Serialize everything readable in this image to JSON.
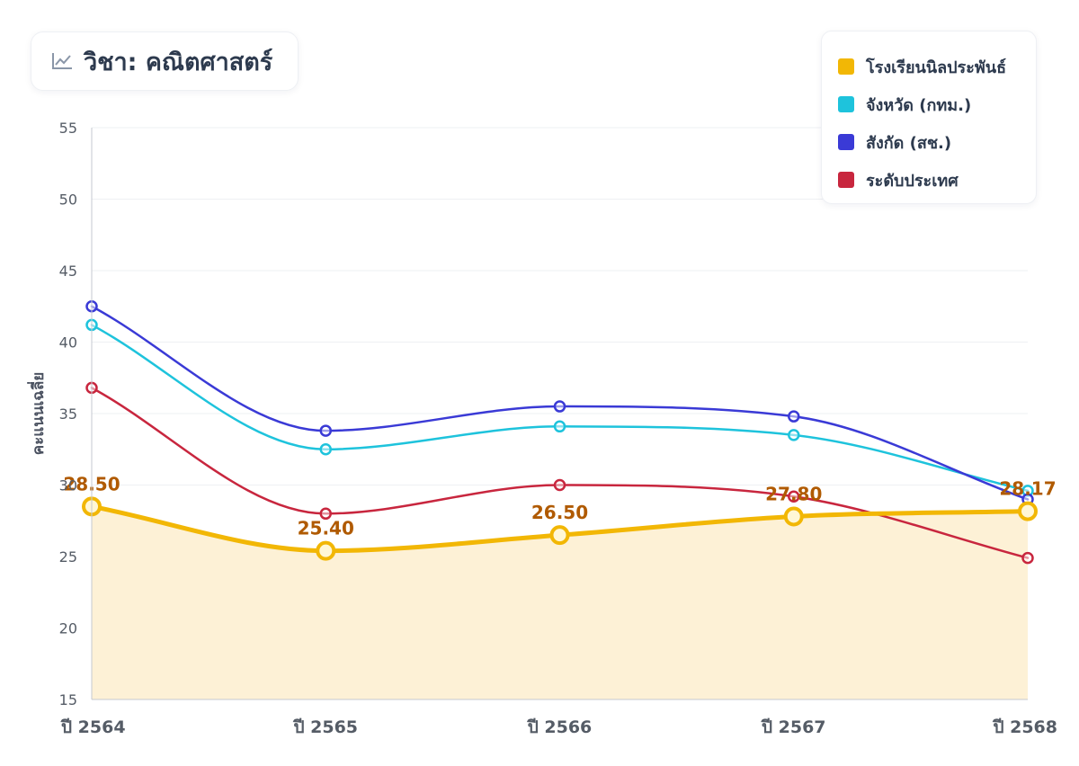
{
  "header": {
    "title": "วิชา: คณิตศาสตร์",
    "icon": "chart-line-icon"
  },
  "colors": {
    "school": "#f2b705",
    "school_fill": "#fdf1d6",
    "school_label": "#b05a00",
    "province": "#1ec3dc",
    "affiliation": "#3a3ad6",
    "nation": "#c8263e",
    "grid": "#eef0f3",
    "axis": "#c5c9d0",
    "tick_text": "#555c66"
  },
  "chart_data": {
    "type": "line",
    "title": "วิชา: คณิตศาสตร์",
    "xlabel": "",
    "ylabel": "คะแนนเฉลี่ย",
    "categories": [
      "ปี 2564",
      "ปี 2565",
      "ปี 2566",
      "ปี 2567",
      "ปี 2568"
    ],
    "ylim": [
      15,
      55
    ],
    "yticks": [
      15,
      20,
      25,
      30,
      35,
      40,
      45,
      50,
      55
    ],
    "grid": true,
    "legend_position": "top-right",
    "series": [
      {
        "key": "school",
        "name": "โรงเรียนนิลประพันธ์",
        "values": [
          28.5,
          25.4,
          26.5,
          27.8,
          28.17
        ],
        "data_labels": [
          "28.50",
          "25.40",
          "26.50",
          "27.80",
          "28.17"
        ],
        "area": true
      },
      {
        "key": "province",
        "name": "จังหวัด (กทม.)",
        "values": [
          41.2,
          32.5,
          34.1,
          33.5,
          29.6
        ]
      },
      {
        "key": "affiliation",
        "name": "สังกัด (สช.)",
        "values": [
          42.5,
          33.8,
          35.5,
          34.8,
          29.0
        ]
      },
      {
        "key": "nation",
        "name": "ระดับประเทศ",
        "values": [
          36.8,
          28.0,
          30.0,
          29.2,
          24.9
        ]
      }
    ]
  }
}
